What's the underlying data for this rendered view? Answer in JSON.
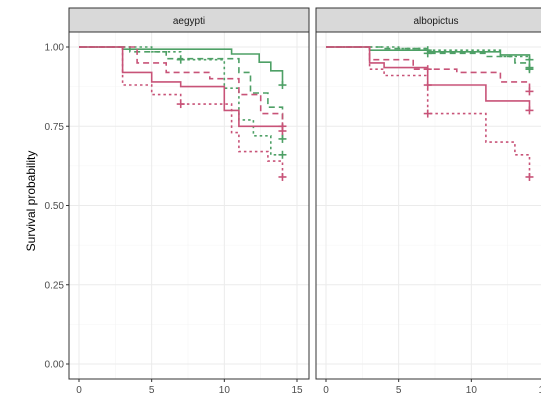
{
  "chart_data": {
    "type": "line",
    "subtype": "kaplan-meier step",
    "ylabel": "Survival probability",
    "xlabel": "",
    "xlim": [
      0,
      15
    ],
    "ylim": [
      0,
      1
    ],
    "x_ticks": [
      "0",
      "5",
      "10",
      "15"
    ],
    "y_ticks": [
      "0.00",
      "0.25",
      "0.50",
      "0.75",
      "1.00"
    ],
    "grid": true,
    "colors": {
      "green": "#4ea066",
      "pink": "#c85378"
    },
    "panels": [
      {
        "label": "aegypti",
        "series": [
          {
            "color": "#4ea066",
            "dash": "solid",
            "steps": [
              [
                0,
                1.0
              ],
              [
                3,
                0.993
              ],
              [
                10.5,
                0.978
              ],
              [
                12.4,
                0.952
              ],
              [
                13.2,
                0.925
              ],
              [
                14,
                0.88
              ]
            ]
          },
          {
            "color": "#4ea066",
            "dash": "dashed",
            "steps": [
              [
                0,
                1.0
              ],
              [
                3.5,
                0.985
              ],
              [
                6,
                0.963
              ],
              [
                11,
                0.92
              ],
              [
                11.8,
                0.855
              ],
              [
                13,
                0.81
              ],
              [
                14,
                0.7
              ]
            ]
          },
          {
            "color": "#4ea066",
            "dash": "dotted",
            "steps": [
              [
                0,
                1.0
              ],
              [
                5,
                0.985
              ],
              [
                7,
                0.96
              ],
              [
                10,
                0.87
              ],
              [
                11,
                0.77
              ],
              [
                12,
                0.72
              ],
              [
                13.2,
                0.66
              ]
            ]
          },
          {
            "color": "#c85378",
            "dash": "solid",
            "steps": [
              [
                0,
                1.0
              ],
              [
                3,
                0.92
              ],
              [
                5,
                0.89
              ],
              [
                7,
                0.875
              ],
              [
                10,
                0.8
              ],
              [
                11,
                0.75
              ],
              [
                14,
                0.735
              ]
            ]
          },
          {
            "color": "#c85378",
            "dash": "dashed",
            "steps": [
              [
                0,
                1.0
              ],
              [
                4,
                0.95
              ],
              [
                6,
                0.92
              ],
              [
                9,
                0.9
              ],
              [
                11,
                0.85
              ],
              [
                12.5,
                0.79
              ],
              [
                14,
                0.75
              ]
            ]
          },
          {
            "color": "#c85378",
            "dash": "dotted",
            "steps": [
              [
                0,
                1.0
              ],
              [
                3,
                0.88
              ],
              [
                5,
                0.85
              ],
              [
                7,
                0.82
              ],
              [
                10.5,
                0.73
              ],
              [
                11,
                0.67
              ],
              [
                13,
                0.64
              ],
              [
                14,
                0.59
              ]
            ]
          }
        ],
        "censor_marks": [
          {
            "x": 14,
            "y": 0.88,
            "color": "#4ea066"
          },
          {
            "x": 14,
            "y": 0.71,
            "color": "#4ea066"
          },
          {
            "x": 14,
            "y": 0.66,
            "color": "#4ea066"
          },
          {
            "x": 7,
            "y": 0.96,
            "color": "#4ea066"
          },
          {
            "x": 14,
            "y": 0.735,
            "color": "#c85378"
          },
          {
            "x": 14,
            "y": 0.75,
            "color": "#c85378"
          },
          {
            "x": 14,
            "y": 0.59,
            "color": "#c85378"
          },
          {
            "x": 7,
            "y": 0.82,
            "color": "#c85378"
          }
        ]
      },
      {
        "label": "albopictus",
        "series": [
          {
            "color": "#4ea066",
            "dash": "solid",
            "steps": [
              [
                0,
                1.0
              ],
              [
                3,
                0.99
              ],
              [
                7,
                0.985
              ],
              [
                12,
                0.975
              ],
              [
                14,
                0.96
              ]
            ]
          },
          {
            "color": "#4ea066",
            "dash": "dashed",
            "steps": [
              [
                0,
                1.0
              ],
              [
                4,
                0.995
              ],
              [
                7,
                0.98
              ],
              [
                11,
                0.97
              ],
              [
                13,
                0.95
              ],
              [
                14,
                0.935
              ]
            ]
          },
          {
            "color": "#4ea066",
            "dash": "dotted",
            "steps": [
              [
                0,
                1.0
              ],
              [
                5,
                0.995
              ],
              [
                7,
                0.99
              ],
              [
                12,
                0.97
              ],
              [
                14,
                0.93
              ]
            ]
          },
          {
            "color": "#c85378",
            "dash": "solid",
            "steps": [
              [
                0,
                1.0
              ],
              [
                3,
                0.95
              ],
              [
                4,
                0.935
              ],
              [
                7,
                0.88
              ],
              [
                11,
                0.83
              ],
              [
                14,
                0.8
              ]
            ]
          },
          {
            "color": "#c85378",
            "dash": "dashed",
            "steps": [
              [
                0,
                1.0
              ],
              [
                3,
                0.96
              ],
              [
                6,
                0.93
              ],
              [
                9,
                0.92
              ],
              [
                12,
                0.89
              ],
              [
                14,
                0.86
              ]
            ]
          },
          {
            "color": "#c85378",
            "dash": "dotted",
            "steps": [
              [
                0,
                1.0
              ],
              [
                3,
                0.93
              ],
              [
                4,
                0.91
              ],
              [
                7,
                0.79
              ],
              [
                11,
                0.7
              ],
              [
                13,
                0.66
              ],
              [
                14,
                0.59
              ]
            ]
          }
        ],
        "censor_marks": [
          {
            "x": 14,
            "y": 0.96,
            "color": "#4ea066"
          },
          {
            "x": 14,
            "y": 0.935,
            "color": "#4ea066"
          },
          {
            "x": 14,
            "y": 0.93,
            "color": "#4ea066"
          },
          {
            "x": 7,
            "y": 0.99,
            "color": "#4ea066"
          },
          {
            "x": 7,
            "y": 0.98,
            "color": "#4ea066"
          },
          {
            "x": 14,
            "y": 0.86,
            "color": "#c85378"
          },
          {
            "x": 14,
            "y": 0.8,
            "color": "#c85378"
          },
          {
            "x": 14,
            "y": 0.59,
            "color": "#c85378"
          },
          {
            "x": 7,
            "y": 0.93,
            "color": "#c85378"
          },
          {
            "x": 7,
            "y": 0.88,
            "color": "#c85378"
          },
          {
            "x": 7,
            "y": 0.79,
            "color": "#c85378"
          }
        ]
      }
    ]
  }
}
